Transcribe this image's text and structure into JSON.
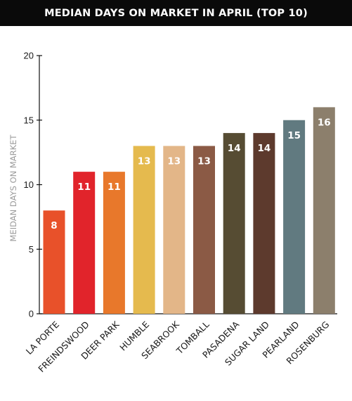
{
  "header": {
    "title": "MEDIAN DAYS ON MARKET IN APRIL (TOP 10)"
  },
  "chart_data": {
    "type": "bar",
    "ylabel": "MEIDAN DAYS ON MARKET",
    "ylim": [
      0,
      20
    ],
    "yticks": [
      0,
      5,
      10,
      15,
      20
    ],
    "grid": false,
    "categories": [
      "LA PORTE",
      "FREINDSWOOD",
      "DEER PARK",
      "HUMBLE",
      "SEABROOK",
      "TOMBALL",
      "PASADENA",
      "SUGAR LAND",
      "PEARLAND",
      "ROSENBURG"
    ],
    "values": [
      8,
      11,
      11,
      13,
      13,
      13,
      14,
      14,
      15,
      16
    ],
    "colors": [
      "#e8512a",
      "#e1242b",
      "#e8782b",
      "#e5ba4e",
      "#e3b688",
      "#8b5a45",
      "#564c33",
      "#5d3a2d",
      "#617a80",
      "#8c7f6c"
    ]
  }
}
